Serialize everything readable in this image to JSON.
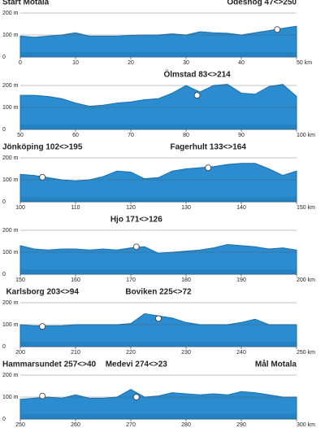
{
  "chart_data": [
    {
      "type": "area",
      "color": "#2b8ccf",
      "left_label": "Start Motala",
      "x": [
        0,
        2.5,
        5,
        7.5,
        10,
        12.5,
        15,
        17.5,
        20,
        22.5,
        25,
        27.5,
        30,
        32.5,
        35,
        37.5,
        40,
        42.5,
        45,
        47.5,
        50
      ],
      "values": [
        95,
        90,
        95,
        100,
        110,
        95,
        95,
        95,
        98,
        100,
        100,
        105,
        100,
        115,
        110,
        108,
        100,
        110,
        120,
        130,
        140
      ],
      "points": [
        {
          "label": "Ödeshög 47<>250",
          "x": 46.5,
          "y": 125
        }
      ],
      "xlim": [
        0,
        50
      ],
      "ylim": [
        0,
        230
      ],
      "xticks": [
        0,
        10,
        20,
        30,
        40,
        {
          "value": 50,
          "label": "50 km"
        }
      ],
      "yticks": [
        0,
        {
          "value": 100,
          "label": "100 m"
        },
        {
          "value": 200,
          "label": "200 m"
        }
      ],
      "grid": true
    },
    {
      "type": "area",
      "color": "#2b8ccf",
      "x": [
        50,
        52.5,
        55,
        57.5,
        60,
        62.5,
        65,
        67.5,
        70,
        72.5,
        75,
        77.5,
        80,
        82.5,
        85,
        87.5,
        90,
        92.5,
        95,
        97.5,
        100
      ],
      "values": [
        155,
        155,
        150,
        140,
        120,
        105,
        110,
        120,
        125,
        135,
        140,
        165,
        200,
        170,
        200,
        205,
        165,
        160,
        195,
        205,
        150
      ],
      "points": [
        {
          "label": "Ölmstad 83<>214",
          "x": 82,
          "y": 155
        }
      ],
      "xlim": [
        50,
        100
      ],
      "ylim": [
        0,
        230
      ],
      "xticks": [
        50,
        60,
        70,
        80,
        90,
        {
          "value": 100,
          "label": "100 km"
        }
      ],
      "yticks": [
        0,
        {
          "value": 100,
          "label": "100 m"
        },
        {
          "value": 200,
          "label": "200 m"
        }
      ],
      "grid": true
    },
    {
      "type": "area",
      "color": "#2b8ccf",
      "x": [
        100,
        102.5,
        105,
        107.5,
        110,
        112.5,
        115,
        117.5,
        120,
        122.5,
        125,
        127.5,
        130,
        132.5,
        135,
        137.5,
        140,
        142.5,
        145,
        147.5,
        150
      ],
      "values": [
        125,
        120,
        110,
        100,
        95,
        100,
        115,
        140,
        135,
        105,
        110,
        140,
        150,
        155,
        160,
        170,
        175,
        175,
        150,
        120,
        140
      ],
      "points": [
        {
          "label": "Jönköping 102<>195",
          "x": 104,
          "y": 112
        },
        {
          "label": "Fagerhult 133<>164",
          "x": 134,
          "y": 155
        }
      ],
      "xlim": [
        100,
        150
      ],
      "ylim": [
        0,
        230
      ],
      "xticks": [
        100,
        110,
        120,
        130,
        140,
        {
          "value": 150,
          "label": "150 km"
        }
      ],
      "yticks": [
        0,
        {
          "value": 100,
          "label": "100 m"
        },
        {
          "value": 200,
          "label": "200 m"
        }
      ],
      "grid": true
    },
    {
      "type": "area",
      "color": "#2b8ccf",
      "x": [
        150,
        152.5,
        155,
        157.5,
        160,
        162.5,
        165,
        167.5,
        170,
        172.5,
        175,
        177.5,
        180,
        182.5,
        185,
        187.5,
        190,
        192.5,
        195,
        197.5,
        200
      ],
      "values": [
        130,
        115,
        110,
        115,
        115,
        110,
        115,
        110,
        120,
        125,
        95,
        100,
        105,
        110,
        120,
        135,
        130,
        125,
        115,
        120,
        110
      ],
      "points": [
        {
          "label": "Hjo 171<>126",
          "x": 171,
          "y": 125
        }
      ],
      "xlim": [
        150,
        200
      ],
      "ylim": [
        0,
        230
      ],
      "xticks": [
        150,
        160,
        170,
        180,
        190,
        {
          "value": 200,
          "label": "200 km"
        }
      ],
      "yticks": [
        0,
        {
          "value": 100,
          "label": "100 m"
        },
        {
          "value": 200,
          "label": "200 m"
        }
      ],
      "grid": true
    },
    {
      "type": "area",
      "color": "#2b8ccf",
      "x": [
        200,
        202.5,
        205,
        207.5,
        210,
        212.5,
        215,
        217.5,
        220,
        222.5,
        225,
        227.5,
        230,
        232.5,
        235,
        237.5,
        240,
        242.5,
        245,
        247.5,
        250
      ],
      "values": [
        100,
        95,
        95,
        95,
        100,
        100,
        100,
        100,
        105,
        150,
        140,
        130,
        110,
        100,
        100,
        100,
        110,
        125,
        100,
        100,
        100
      ],
      "points": [
        {
          "label": "Karlsborg 203<>94",
          "x": 204,
          "y": 92
        },
        {
          "label": "Boviken 225<>72",
          "x": 225,
          "y": 128
        }
      ],
      "xlim": [
        200,
        250
      ],
      "ylim": [
        0,
        230
      ],
      "xticks": [
        200,
        210,
        220,
        230,
        240,
        {
          "value": 250,
          "label": "250 km"
        }
      ],
      "yticks": [
        0,
        {
          "value": 100,
          "label": "100 m"
        },
        {
          "value": 200,
          "label": "200 m"
        }
      ],
      "grid": true
    },
    {
      "type": "area",
      "color": "#2b8ccf",
      "right_label": "Mål Motala",
      "x": [
        250,
        252.5,
        255,
        257.5,
        260,
        262.5,
        265,
        267.5,
        270,
        272.5,
        275,
        277.5,
        280,
        282.5,
        285,
        287.5,
        290,
        292.5,
        295,
        297.5,
        300
      ],
      "values": [
        90,
        95,
        100,
        95,
        110,
        95,
        95,
        100,
        135,
        100,
        105,
        120,
        115,
        110,
        115,
        110,
        125,
        120,
        110,
        100,
        100
      ],
      "points": [
        {
          "label": "Hammarsundet 257<>40",
          "x": 254,
          "y": 105
        },
        {
          "label": "Medevi 274<>23",
          "x": 271,
          "y": 100
        }
      ],
      "xlim": [
        250,
        300
      ],
      "ylim": [
        0,
        230
      ],
      "xticks": [
        250,
        260,
        270,
        280,
        290,
        {
          "value": 300,
          "label": "300 km"
        }
      ],
      "yticks": [
        0,
        {
          "value": 100,
          "label": "100 m"
        },
        {
          "value": 200,
          "label": "200 m"
        }
      ],
      "grid": true
    }
  ]
}
